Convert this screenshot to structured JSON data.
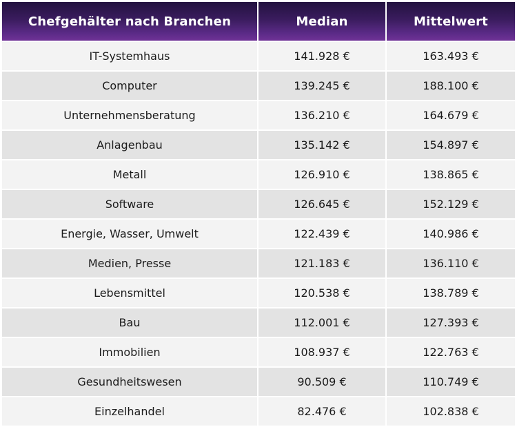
{
  "table": {
    "headers": [
      "Chefgehälter nach Branchen",
      "Median",
      "Mittelwert"
    ],
    "rows": [
      [
        "IT-Systemhaus",
        "141.928 €",
        "163.493 €"
      ],
      [
        "Computer",
        "139.245 €",
        "188.100 €"
      ],
      [
        "Unternehmensberatung",
        "136.210 €",
        "164.679 €"
      ],
      [
        "Anlagenbau",
        "135.142 €",
        "154.897 €"
      ],
      [
        "Metall",
        "126.910 €",
        "138.865 €"
      ],
      [
        "Software",
        "126.645 €",
        "152.129 €"
      ],
      [
        "Energie, Wasser, Umwelt",
        "122.439 €",
        "140.986 €"
      ],
      [
        "Medien, Presse",
        "121.183 €",
        "136.110 €"
      ],
      [
        "Lebensmittel",
        "120.538 €",
        "138.789 €"
      ],
      [
        "Bau",
        "112.001 €",
        "127.393 €"
      ],
      [
        "Immobilien",
        "108.937 €",
        "122.763 €"
      ],
      [
        "Gesundheitswesen",
        "90.509 €",
        "110.749 €"
      ],
      [
        "Einzelhandel",
        "82.476 €",
        "102.838 €"
      ]
    ]
  },
  "colors": {
    "header_top": "#23123f",
    "header_bottom": "#6f3296",
    "row_light": "#f3f3f3",
    "row_dark": "#e3e3e3"
  }
}
